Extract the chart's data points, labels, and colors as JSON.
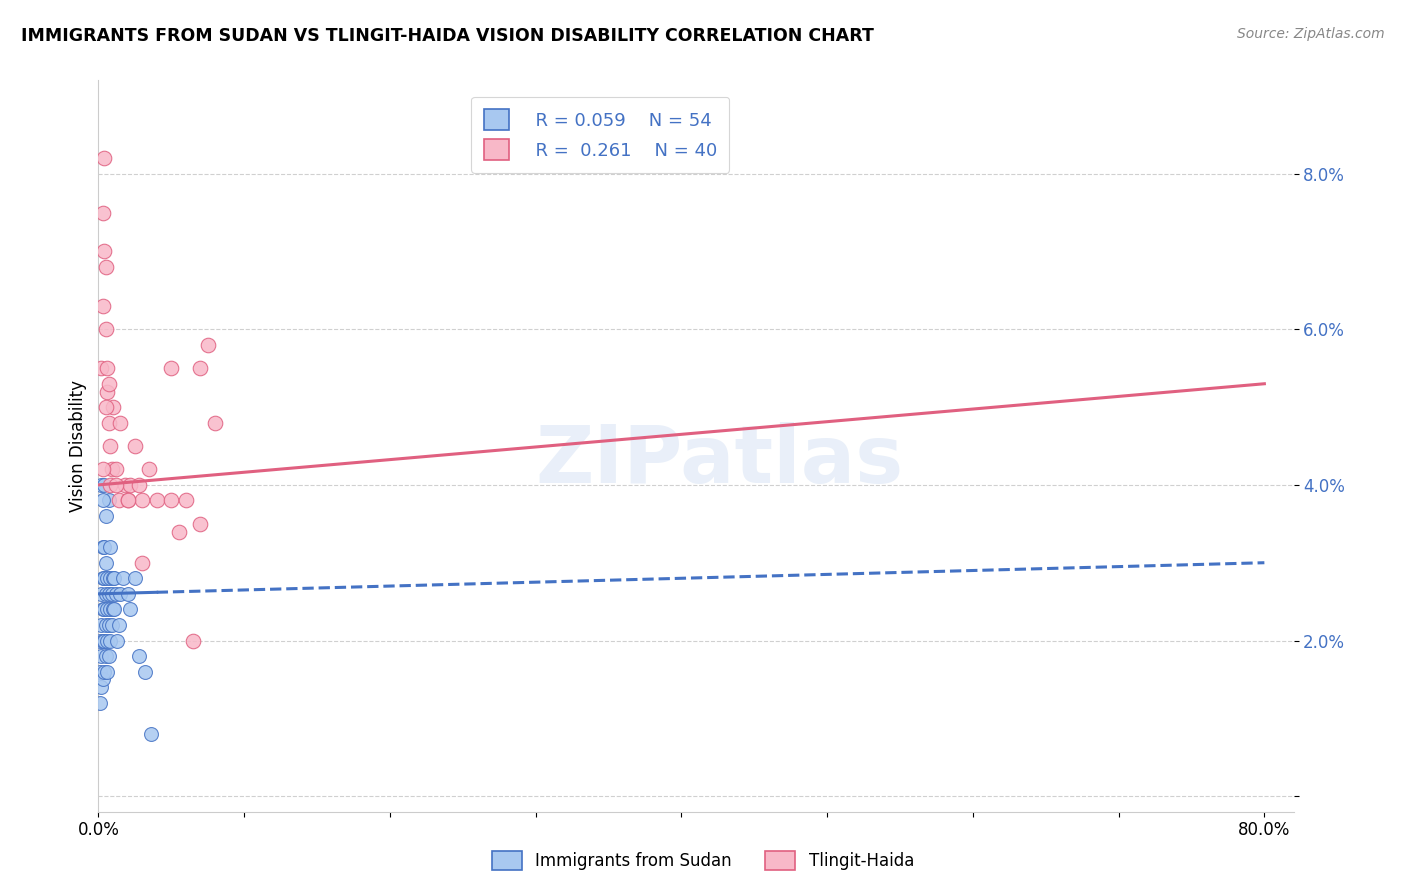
{
  "title": "IMMIGRANTS FROM SUDAN VS TLINGIT-HAIDA VISION DISABILITY CORRELATION CHART",
  "source": "Source: ZipAtlas.com",
  "ylabel": "Vision Disability",
  "xlim": [
    0.0,
    0.82
  ],
  "ylim": [
    -0.002,
    0.092
  ],
  "yticks": [
    0.0,
    0.02,
    0.04,
    0.06,
    0.08
  ],
  "ytick_labels": [
    "",
    "2.0%",
    "4.0%",
    "6.0%",
    "8.0%"
  ],
  "xticks": [
    0.0,
    0.1,
    0.2,
    0.3,
    0.4,
    0.5,
    0.6,
    0.7,
    0.8
  ],
  "xtick_labels": [
    "0.0%",
    "",
    "",
    "",
    "",
    "",
    "",
    "",
    "80.0%"
  ],
  "blue_color": "#a8c8f0",
  "pink_color": "#f8b8c8",
  "trend_blue_color": "#4472c4",
  "trend_pink_color": "#e06080",
  "watermark": "ZIPatlas",
  "blue_points_x": [
    0.001,
    0.001,
    0.001,
    0.002,
    0.002,
    0.002,
    0.002,
    0.003,
    0.003,
    0.003,
    0.003,
    0.003,
    0.004,
    0.004,
    0.004,
    0.004,
    0.004,
    0.005,
    0.005,
    0.005,
    0.005,
    0.006,
    0.006,
    0.006,
    0.006,
    0.007,
    0.007,
    0.007,
    0.007,
    0.008,
    0.008,
    0.008,
    0.008,
    0.009,
    0.009,
    0.01,
    0.01,
    0.011,
    0.011,
    0.012,
    0.013,
    0.014,
    0.015,
    0.017,
    0.02,
    0.022,
    0.025,
    0.028,
    0.032,
    0.036,
    0.002,
    0.003,
    0.004,
    0.005
  ],
  "blue_points_y": [
    0.012,
    0.016,
    0.02,
    0.014,
    0.018,
    0.022,
    0.026,
    0.015,
    0.02,
    0.024,
    0.028,
    0.032,
    0.016,
    0.02,
    0.024,
    0.028,
    0.032,
    0.018,
    0.022,
    0.026,
    0.03,
    0.016,
    0.02,
    0.024,
    0.028,
    0.018,
    0.022,
    0.026,
    0.038,
    0.02,
    0.024,
    0.028,
    0.032,
    0.022,
    0.026,
    0.024,
    0.028,
    0.024,
    0.028,
    0.026,
    0.02,
    0.022,
    0.026,
    0.028,
    0.026,
    0.024,
    0.028,
    0.018,
    0.016,
    0.008,
    0.04,
    0.038,
    0.04,
    0.036
  ],
  "pink_points_x": [
    0.002,
    0.003,
    0.003,
    0.004,
    0.004,
    0.005,
    0.005,
    0.006,
    0.006,
    0.007,
    0.007,
    0.008,
    0.009,
    0.01,
    0.012,
    0.014,
    0.015,
    0.018,
    0.02,
    0.022,
    0.025,
    0.028,
    0.03,
    0.035,
    0.04,
    0.05,
    0.055,
    0.06,
    0.065,
    0.07,
    0.075,
    0.08,
    0.003,
    0.005,
    0.008,
    0.012,
    0.02,
    0.03,
    0.05,
    0.07
  ],
  "pink_points_y": [
    0.055,
    0.063,
    0.075,
    0.07,
    0.082,
    0.06,
    0.068,
    0.055,
    0.052,
    0.048,
    0.053,
    0.045,
    0.042,
    0.05,
    0.042,
    0.038,
    0.048,
    0.04,
    0.038,
    0.04,
    0.045,
    0.04,
    0.038,
    0.042,
    0.038,
    0.038,
    0.034,
    0.038,
    0.02,
    0.055,
    0.058,
    0.048,
    0.042,
    0.05,
    0.04,
    0.04,
    0.038,
    0.03,
    0.055,
    0.035
  ],
  "blue_trend_x0": 0.0,
  "blue_trend_x1": 0.8,
  "blue_trend_y0": 0.026,
  "blue_trend_y1": 0.03,
  "pink_trend_x0": 0.0,
  "pink_trend_x1": 0.8,
  "pink_trend_y0": 0.04,
  "pink_trend_y1": 0.053
}
